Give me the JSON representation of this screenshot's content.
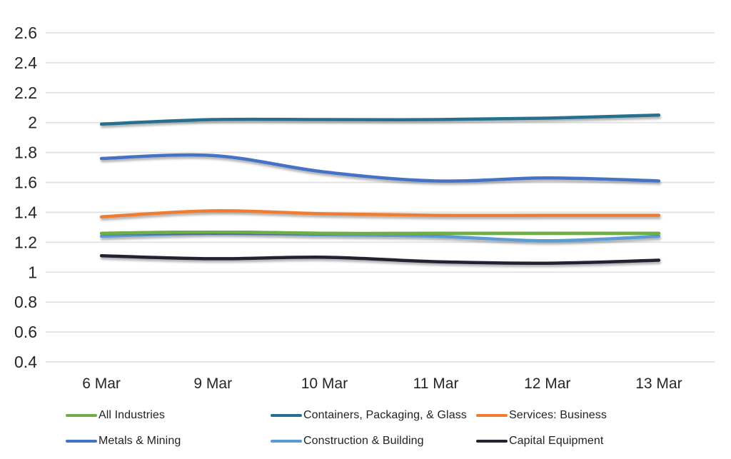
{
  "chart_data": {
    "type": "line",
    "title": "",
    "xlabel": "",
    "ylabel": "",
    "categories": [
      "6 Mar",
      "9 Mar",
      "10 Mar",
      "11 Mar",
      "12 Mar",
      "13 Mar"
    ],
    "series": [
      {
        "name": "All Industries",
        "color": "#70AD47",
        "values": [
          1.26,
          1.27,
          1.26,
          1.26,
          1.26,
          1.26
        ]
      },
      {
        "name": "Containers, Packaging, & Glass",
        "color": "#26708D",
        "values": [
          1.99,
          2.02,
          2.02,
          2.02,
          2.03,
          2.05
        ]
      },
      {
        "name": "Services: Business",
        "color": "#ED7D31",
        "values": [
          1.37,
          1.41,
          1.39,
          1.38,
          1.38,
          1.38
        ]
      },
      {
        "name": "Metals & Mining",
        "color": "#4472C4",
        "values": [
          1.76,
          1.78,
          1.67,
          1.61,
          1.63,
          1.61
        ]
      },
      {
        "name": "Construction & Building",
        "color": "#5B9BD5",
        "values": [
          1.24,
          1.26,
          1.25,
          1.24,
          1.21,
          1.24
        ]
      },
      {
        "name": "Capital Equipment",
        "color": "#222433",
        "values": [
          1.11,
          1.09,
          1.1,
          1.07,
          1.06,
          1.08
        ]
      }
    ],
    "y_ticks": [
      2.6,
      2.4,
      2.2,
      2,
      1.8,
      1.6,
      1.4,
      1.2,
      1,
      0.8,
      0.6,
      0.4
    ],
    "ylim": [
      0.4,
      2.6
    ],
    "grid": true,
    "smooth": true,
    "legend_position": "bottom",
    "legend_rows": [
      [
        "All Industries",
        "Containers, Packaging, & Glass",
        "Services: Business"
      ],
      [
        "Metals & Mining",
        "Construction & Building",
        "Capital Equipment"
      ]
    ]
  },
  "styles": {
    "background": "#FFFFFF",
    "grid_color": "#E2E2E2",
    "axis_text_color": "#262626",
    "legend_text_color": "#222222"
  }
}
